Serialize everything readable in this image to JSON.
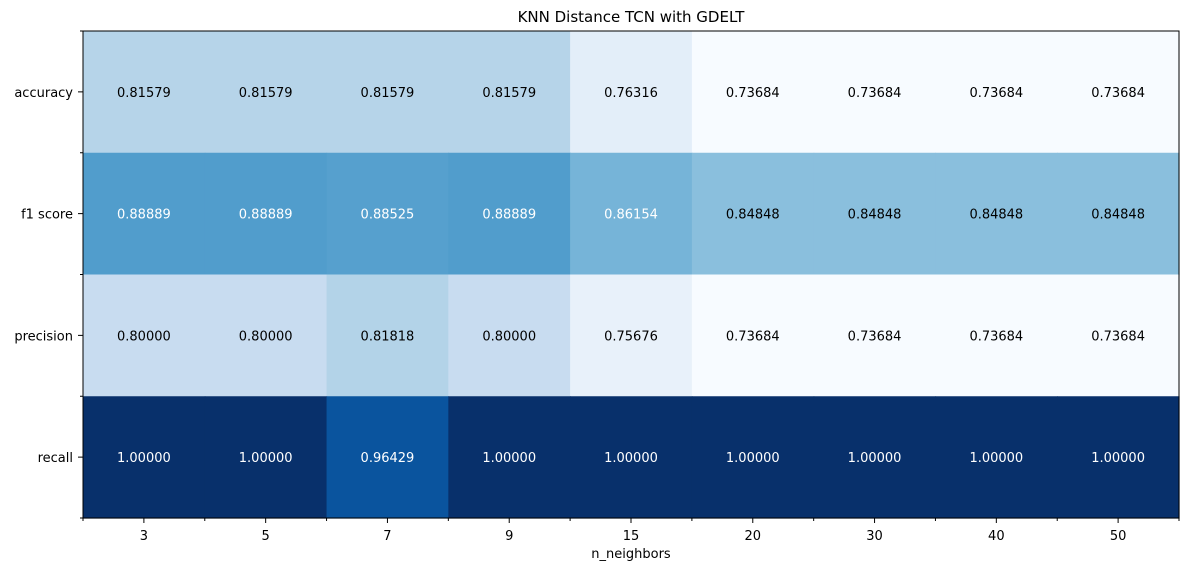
{
  "chart_data": {
    "type": "heatmap",
    "title": "KNN Distance TCN with GDELT",
    "xlabel": "n_neighbors",
    "ylabel": "",
    "x_categories": [
      "3",
      "5",
      "7",
      "9",
      "15",
      "20",
      "30",
      "40",
      "50"
    ],
    "y_categories": [
      "accuracy",
      "f1 score",
      "precision",
      "recall"
    ],
    "values": [
      [
        0.81579,
        0.81579,
        0.81579,
        0.81579,
        0.76316,
        0.73684,
        0.73684,
        0.73684,
        0.73684
      ],
      [
        0.88889,
        0.88889,
        0.88525,
        0.88889,
        0.86154,
        0.84848,
        0.84848,
        0.84848,
        0.84848
      ],
      [
        0.8,
        0.8,
        0.81818,
        0.8,
        0.75676,
        0.73684,
        0.73684,
        0.73684,
        0.73684
      ],
      [
        1.0,
        1.0,
        0.96429,
        1.0,
        1.0,
        1.0,
        1.0,
        1.0,
        1.0
      ]
    ],
    "labels": [
      [
        "0.81579",
        "0.81579",
        "0.81579",
        "0.81579",
        "0.76316",
        "0.73684",
        "0.73684",
        "0.73684",
        "0.73684"
      ],
      [
        "0.88889",
        "0.88889",
        "0.88525",
        "0.88889",
        "0.86154",
        "0.84848",
        "0.84848",
        "0.84848",
        "0.84848"
      ],
      [
        "0.80000",
        "0.80000",
        "0.81818",
        "0.80000",
        "0.75676",
        "0.73684",
        "0.73684",
        "0.73684",
        "0.73684"
      ],
      [
        "1.00000",
        "1.00000",
        "0.96429",
        "1.00000",
        "1.00000",
        "1.00000",
        "1.00000",
        "1.00000",
        "1.00000"
      ]
    ],
    "colormap": "Blues",
    "vmin": 0.73684,
    "vmax": 1.0,
    "grid": false,
    "legend": false
  }
}
